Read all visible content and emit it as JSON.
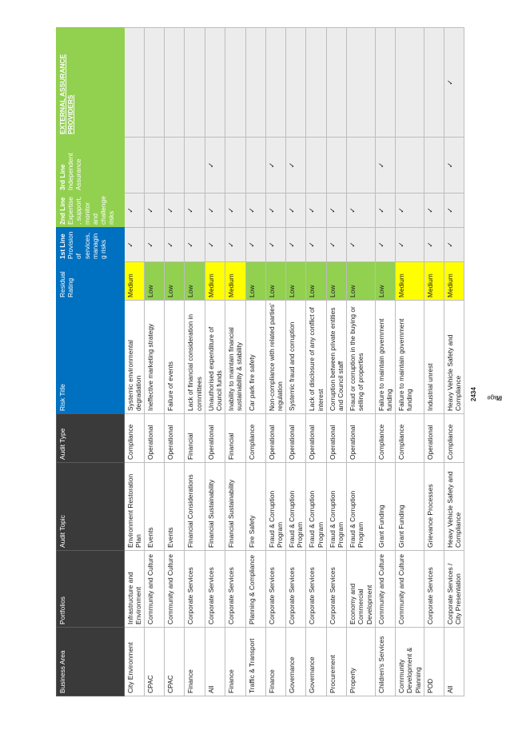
{
  "headers": {
    "business_area": "Business Area",
    "portfolios": "Portfolios",
    "audit_topic": "Audit Topic",
    "audit_type": "Audit Type",
    "risk_title": "Risk Title",
    "residual_rating": "Residual Rating",
    "first_line_title": "1st Line",
    "first_line_sub": "Provision of services, managing risks",
    "second_line_title": "2nd Line",
    "second_line_sub": "Expertise, support, monitor and challenge risks",
    "third_line_title": "3rd Line",
    "third_line_sub": "Independent Assurance",
    "external": "EXTERNAL ASSURANCE PROVIDERS"
  },
  "check_glyph": "✓",
  "rows": [
    {
      "business_area": "City Environment",
      "portfolio": "Infrastructure and Environment",
      "topic": "Environment Restoration Plan",
      "type": "Compliance",
      "risk": "Systemic environmental degradation",
      "rating": "Medium",
      "l1": "✓",
      "l2": "✓",
      "l3": "",
      "ext": ""
    },
    {
      "business_area": "CPAC",
      "portfolio": "Community and Culture",
      "topic": "Events",
      "type": "Operational",
      "risk": "Ineffective marketing strategy",
      "rating": "Low",
      "l1": "✓",
      "l2": "✓",
      "l3": "",
      "ext": ""
    },
    {
      "business_area": "CPAC",
      "portfolio": "Community and Culture",
      "topic": "Events",
      "type": "Operational",
      "risk": "Failure of events",
      "rating": "Low",
      "l1": "✓",
      "l2": "✓",
      "l3": "",
      "ext": ""
    },
    {
      "business_area": "Finance",
      "portfolio": "Corporate Services",
      "topic": "Financial Considerations",
      "type": "Financial",
      "risk": "Lack of financial consideration in committees",
      "rating": "Low",
      "l1": "✓",
      "l2": "✓",
      "l3": "",
      "ext": ""
    },
    {
      "business_area": "All",
      "portfolio": "Corporate Services",
      "topic": "Financial Sustainability",
      "type": "Operational",
      "risk": "Unauthorised expenditure of Council funds",
      "rating": "Medium",
      "l1": "✓",
      "l2": "✓",
      "l3": "✓",
      "ext": ""
    },
    {
      "business_area": "Finance",
      "portfolio": "Corporate Services",
      "topic": "Financial Sustainability",
      "type": "Financial",
      "risk": "Inability to maintain financial sustainability & stability",
      "rating": "Medium",
      "l1": "✓",
      "l2": "✓",
      "l3": "",
      "ext": ""
    },
    {
      "business_area": "Traffic & Transport",
      "portfolio": "Planning & Compliance",
      "topic": "Fire Safety",
      "type": "Compliance",
      "risk": "Car park fire safety",
      "rating": "Low",
      "l1": "✓",
      "l2": "✓",
      "l3": "",
      "ext": ""
    },
    {
      "business_area": "Finance",
      "portfolio": "Corporate Services",
      "topic": "Fraud & Corruption Program",
      "type": "Operational",
      "risk": "Non-compliance with related parties' regulation",
      "rating": "Low",
      "l1": "✓",
      "l2": "✓",
      "l3": "✓",
      "ext": ""
    },
    {
      "business_area": "Governance",
      "portfolio": "Corporate Services",
      "topic": "Fraud & Corruption Program",
      "type": "Operational",
      "risk": "Systemic fraud and corruption",
      "rating": "Low",
      "l1": "✓",
      "l2": "✓",
      "l3": "✓",
      "ext": ""
    },
    {
      "business_area": "Governance",
      "portfolio": "Corporate Services",
      "topic": "Fraud & Corruption Program",
      "type": "Operational",
      "risk": "Lack of disclosure of any conflict of interest",
      "rating": "Low",
      "l1": "✓",
      "l2": "✓",
      "l3": "",
      "ext": ""
    },
    {
      "business_area": "Procurement",
      "portfolio": "Corporate Services",
      "topic": "Fraud & Corruption Program",
      "type": "Operational",
      "risk": "Corruption between private entities and Council staff",
      "rating": "Low",
      "l1": "✓",
      "l2": "✓",
      "l3": "",
      "ext": ""
    },
    {
      "business_area": "Property",
      "portfolio": "Economy and Commercial Development",
      "topic": "Fraud & Corruption Program",
      "type": "Operational",
      "risk": "Fraud or corruption in the buying or selling of properties",
      "rating": "Low",
      "l1": "✓",
      "l2": "✓",
      "l3": "",
      "ext": ""
    },
    {
      "business_area": "Children's Services",
      "portfolio": "Community and Culture",
      "topic": "Grant Funding",
      "type": "Compliance",
      "risk": "Failure to maintain government funding",
      "rating": "Low",
      "l1": "✓",
      "l2": "✓",
      "l3": "✓",
      "ext": ""
    },
    {
      "business_area": "Community Development & Planning",
      "portfolio": "Community and Culture",
      "topic": "Grant Funding",
      "type": "Compliance",
      "risk": "Failure to maintain government funding",
      "rating": "Medium",
      "l1": "✓",
      "l2": "✓",
      "l3": "",
      "ext": ""
    },
    {
      "business_area": "POD",
      "portfolio": "Corporate Services",
      "topic": "Grievance Processes",
      "type": "Operational",
      "risk": "Industrial unrest",
      "rating": "Medium",
      "l1": "✓",
      "l2": "✓",
      "l3": "",
      "ext": ""
    },
    {
      "business_area": "All",
      "portfolio": "Corporate Services / City Presentation",
      "topic": "Heavy Vehicle Safety and Compliance",
      "type": "Compliance",
      "risk": "Heavy Vehicle Safety and Compliance",
      "rating": "Medium",
      "l1": "✓",
      "l2": "✓",
      "l3": "✓",
      "ext": "✓"
    }
  ],
  "page": {
    "prefix": "Page ",
    "current": "24",
    "middle": " of ",
    "total": "34"
  }
}
